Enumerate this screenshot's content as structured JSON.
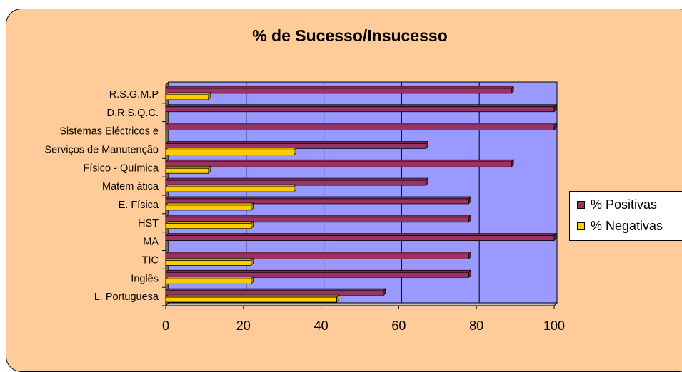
{
  "chart_data": {
    "type": "bar",
    "orientation": "horizontal",
    "title": "%  de Sucesso/Insucesso",
    "categories": [
      "L. Portuguesa",
      "Inglês",
      "TIC",
      "MA",
      "HST",
      "E. Física",
      "Matem ática",
      "Serviços de Manutenção",
      "Sistemas Eléctricos e",
      "Físico - Química",
      "D.R.S.Q.C.",
      "R.S.G.M.P"
    ],
    "series": [
      {
        "name": "% Positivas",
        "color": "#993366",
        "values": [
          56,
          78,
          78,
          100,
          78,
          78,
          67,
          67,
          100,
          89,
          100,
          89
        ]
      },
      {
        "name": "% Negativas",
        "color": "#ffcc00",
        "values": [
          44,
          22,
          22,
          0,
          22,
          22,
          33,
          33,
          0,
          11,
          0,
          11
        ]
      }
    ],
    "xlim": [
      0,
      100
    ],
    "x_ticks": [
      "0",
      "20",
      "40",
      "60",
      "80",
      "100"
    ],
    "grid": true,
    "plot_background": "#9999ff",
    "chart_background": "#ffcc99",
    "legend_position": "right"
  },
  "display_order_top_to_bottom": [
    "R.S.G.M.P",
    "D.R.S.Q.C.",
    "Sistemas Eléctricos e",
    "Serviços de Manutenção",
    "Físico - Química",
    "Matem ática",
    "E. Física",
    "HST",
    "MA",
    "TIC",
    "Inglês",
    "L. Portuguesa"
  ]
}
